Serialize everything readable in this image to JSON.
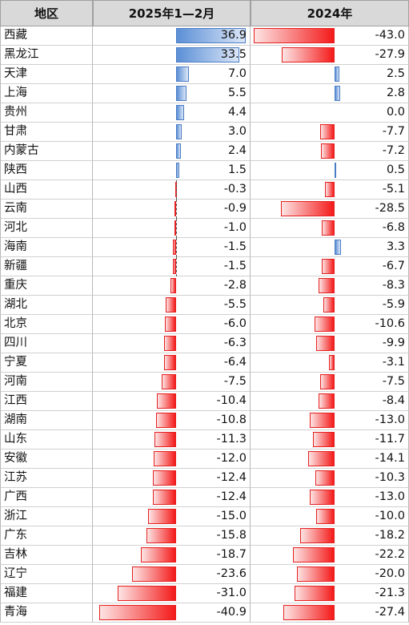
{
  "chart_data": {
    "type": "table",
    "columns": [
      "地区",
      "2025年1—2月",
      "2024年"
    ],
    "regions": [
      "西藏",
      "黑龙江",
      "天津",
      "上海",
      "贵州",
      "甘肃",
      "内蒙古",
      "陕西",
      "山西",
      "云南",
      "河北",
      "海南",
      "新疆",
      "重庆",
      "湖北",
      "北京",
      "四川",
      "宁夏",
      "河南",
      "江西",
      "湖南",
      "山东",
      "安徽",
      "江苏",
      "广西",
      "浙江",
      "广东",
      "吉林",
      "辽宁",
      "福建",
      "青海"
    ],
    "series": [
      {
        "name": "2025年1—2月",
        "values": [
          36.9,
          33.5,
          7.0,
          5.5,
          4.4,
          3.0,
          2.4,
          1.5,
          -0.3,
          -0.9,
          -1.0,
          -1.5,
          -1.5,
          -2.8,
          -5.5,
          -6.0,
          -6.3,
          -6.4,
          -7.5,
          -10.4,
          -10.8,
          -11.3,
          -12.0,
          -12.4,
          -12.4,
          -15.0,
          -15.8,
          -18.7,
          -23.6,
          -31.0,
          -40.9
        ]
      },
      {
        "name": "2024年",
        "values": [
          -43.0,
          -27.9,
          2.5,
          2.8,
          0.0,
          -7.7,
          -7.2,
          0.5,
          -5.1,
          -28.5,
          -6.8,
          3.3,
          -6.7,
          -8.3,
          -5.9,
          -10.6,
          -9.9,
          -3.1,
          -7.5,
          -8.4,
          -13.0,
          -11.7,
          -14.1,
          -10.3,
          -13.0,
          -10.0,
          -18.2,
          -22.2,
          -20.0,
          -21.3,
          -27.4
        ]
      }
    ],
    "colors": {
      "positive": "#5b8fd6",
      "negative": "#f41a1a",
      "header_bg": "#d9d9d9"
    }
  }
}
